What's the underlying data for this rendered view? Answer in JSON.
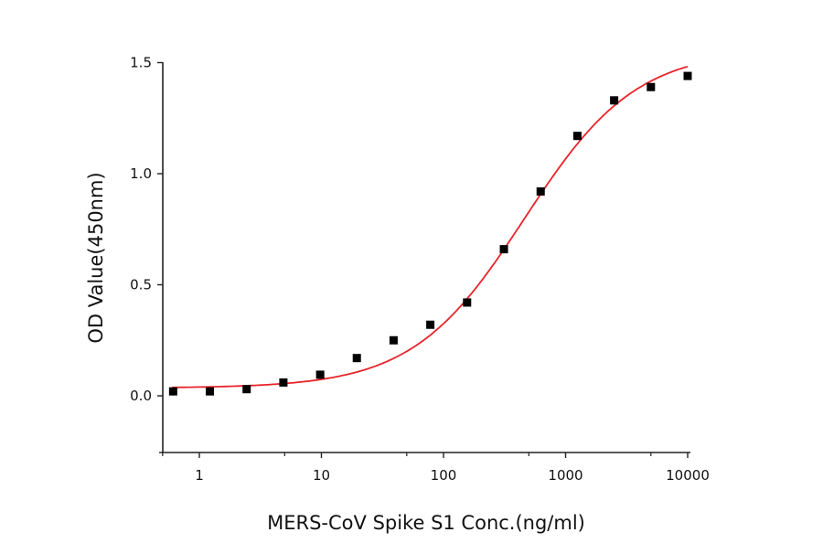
{
  "chart_data": {
    "type": "scatter",
    "title": "",
    "xlabel": "MERS-CoV Spike S1 Conc.(ng/ml)",
    "ylabel": "OD Value(450nm)",
    "xscale": "log",
    "xlim": [
      0.5,
      11000
    ],
    "ylim": [
      -0.25,
      1.5
    ],
    "xticks": [
      1,
      10,
      100,
      1000,
      10000
    ],
    "xtick_labels": [
      "1",
      "10",
      "100",
      "1000",
      "10000"
    ],
    "yticks": [
      0.0,
      0.5,
      1.0,
      1.5
    ],
    "ytick_labels": [
      "0.0",
      "0.5",
      "1.0",
      "1.5"
    ],
    "grid": false,
    "legend": "none",
    "series": [
      {
        "marker": "square",
        "color": "#000000",
        "x": [
          0.61,
          1.22,
          2.44,
          4.88,
          9.77,
          19.5,
          39,
          78,
          156,
          312.5,
          625,
          1250,
          2500,
          5000,
          10000
        ],
        "y": [
          0.02,
          0.02,
          0.03,
          0.06,
          0.095,
          0.17,
          0.25,
          0.32,
          0.42,
          0.66,
          0.92,
          1.17,
          1.33,
          1.39,
          1.44
        ]
      }
    ],
    "fit": {
      "type": "4PL",
      "color": "#e8242a",
      "bottom": 0.035,
      "top": 1.56,
      "ec50": 460,
      "hill": 0.95
    }
  }
}
